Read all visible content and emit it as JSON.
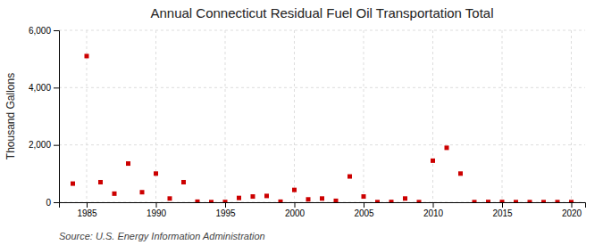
{
  "chart_data": {
    "type": "scatter",
    "title": "Annual Connecticut Residual Fuel Oil Transportation Total",
    "ylabel": "Thousand Gallons",
    "annotations": [
      "Source: U.S. Energy Information Administration"
    ],
    "x": [
      1984,
      1985,
      1986,
      1987,
      1988,
      1989,
      1990,
      1991,
      1992,
      1993,
      1994,
      1995,
      1996,
      1997,
      1998,
      1999,
      2000,
      2001,
      2002,
      2003,
      2004,
      2005,
      2006,
      2007,
      2008,
      2009,
      2010,
      2011,
      2012,
      2013,
      2014,
      2015,
      2016,
      2017,
      2018,
      2019,
      2020
    ],
    "values": [
      650,
      5100,
      700,
      300,
      1350,
      350,
      1000,
      130,
      700,
      20,
      5,
      10,
      150,
      200,
      220,
      20,
      430,
      100,
      130,
      50,
      900,
      200,
      5,
      10,
      130,
      5,
      1450,
      1900,
      1000,
      5,
      10,
      10,
      5,
      5,
      5,
      5,
      5
    ],
    "color": "#cc0000",
    "marker": "square",
    "xlim": [
      1983,
      2021
    ],
    "xticks": [
      1985,
      1990,
      1995,
      2000,
      2005,
      2010,
      2015,
      2020
    ],
    "ylim": [
      0,
      6000
    ],
    "yticks": [
      0,
      {
        "value": 2000,
        "label": "2,000"
      },
      {
        "value": 4000,
        "label": "4,000"
      },
      {
        "value": 6000,
        "label": "6,000"
      }
    ],
    "grid": true
  }
}
